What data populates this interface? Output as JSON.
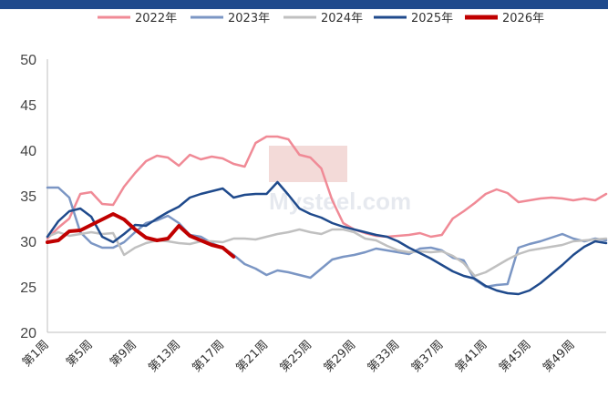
{
  "chart_data": {
    "type": "line",
    "title": "",
    "xlabel": "",
    "ylabel": "",
    "ylim": [
      20,
      50
    ],
    "yticks": [
      20,
      25,
      30,
      35,
      40,
      45,
      50
    ],
    "x_tick_labels": [
      "第1周",
      "第5周",
      "第9周",
      "第13周",
      "第17周",
      "第21周",
      "第25周",
      "第29周",
      "第33周",
      "第37周",
      "第41周",
      "第45周",
      "第49周"
    ],
    "x_tick_weeks": [
      1,
      5,
      9,
      13,
      17,
      21,
      25,
      29,
      33,
      37,
      41,
      45,
      49
    ],
    "x_range": [
      1,
      52
    ],
    "legend_position": "top",
    "series": [
      {
        "name": "2022年",
        "color": "#f08a96",
        "width": 2.5,
        "x": [
          1,
          2,
          3,
          4,
          5,
          6,
          7,
          8,
          9,
          10,
          11,
          12,
          13,
          14,
          15,
          16,
          17,
          18,
          19,
          20,
          21,
          22,
          23,
          24,
          25,
          26,
          27,
          28,
          29,
          30,
          31,
          32,
          33,
          34,
          35,
          36,
          37,
          38,
          39,
          40,
          41,
          42,
          43,
          44,
          45,
          46,
          47,
          48,
          49,
          50,
          51,
          52
        ],
        "values": [
          30.3,
          31.5,
          32.5,
          35.2,
          35.4,
          34.1,
          34.0,
          36.0,
          37.5,
          38.8,
          39.4,
          39.2,
          38.3,
          39.5,
          39.0,
          39.3,
          39.1,
          38.5,
          38.2,
          40.8,
          41.5,
          41.5,
          41.2,
          39.5,
          39.2,
          38.0,
          34.5,
          32.0,
          31.3,
          30.9,
          30.6,
          30.5,
          30.6,
          30.7,
          30.9,
          30.5,
          30.7,
          32.5,
          33.3,
          34.2,
          35.2,
          35.7,
          35.3,
          34.3,
          34.5,
          34.7,
          34.8,
          34.7,
          34.5,
          34.7,
          34.5,
          35.2
        ]
      },
      {
        "name": "2023年",
        "color": "#7b96c4",
        "width": 2.5,
        "x": [
          1,
          2,
          3,
          4,
          5,
          6,
          7,
          8,
          9,
          10,
          11,
          12,
          13,
          14,
          15,
          16,
          17,
          18,
          19,
          20,
          21,
          22,
          23,
          24,
          25,
          26,
          27,
          28,
          29,
          30,
          31,
          32,
          33,
          34,
          35,
          36,
          37,
          38,
          39,
          40,
          41,
          42,
          43,
          44,
          45,
          46,
          47,
          48,
          49,
          50,
          51,
          52
        ],
        "values": [
          35.9,
          35.9,
          34.8,
          31.0,
          29.8,
          29.3,
          29.3,
          29.9,
          31.0,
          32.0,
          32.3,
          32.8,
          32.0,
          30.7,
          30.5,
          29.8,
          29.3,
          28.5,
          27.5,
          27.0,
          26.3,
          26.8,
          26.6,
          26.3,
          26.0,
          27.0,
          28.0,
          28.3,
          28.5,
          28.8,
          29.2,
          29.0,
          28.8,
          28.6,
          29.2,
          29.3,
          29.0,
          28.2,
          27.9,
          25.8,
          25.0,
          25.2,
          25.3,
          29.3,
          29.7,
          30.0,
          30.4,
          30.8,
          30.3,
          30.0,
          30.3,
          30.1
        ]
      },
      {
        "name": "2024年",
        "color": "#c0c0c0",
        "width": 2.5,
        "x": [
          1,
          2,
          3,
          4,
          5,
          6,
          7,
          8,
          9,
          10,
          11,
          12,
          13,
          14,
          15,
          16,
          17,
          18,
          19,
          20,
          21,
          22,
          23,
          24,
          25,
          26,
          27,
          28,
          29,
          30,
          31,
          32,
          33,
          34,
          35,
          36,
          37,
          38,
          39,
          40,
          41,
          42,
          43,
          44,
          45,
          46,
          47,
          48,
          49,
          50,
          51,
          52
        ],
        "values": [
          30.5,
          31.0,
          30.6,
          30.8,
          31.0,
          30.8,
          30.9,
          28.5,
          29.3,
          29.8,
          30.1,
          30.0,
          29.8,
          29.7,
          30.0,
          30.0,
          29.9,
          30.3,
          30.3,
          30.2,
          30.5,
          30.8,
          31.0,
          31.3,
          31.0,
          30.8,
          31.3,
          31.3,
          31.0,
          30.3,
          30.1,
          29.5,
          29.0,
          28.8,
          28.9,
          28.8,
          28.9,
          28.4,
          27.6,
          26.2,
          26.6,
          27.3,
          28.0,
          28.6,
          29.0,
          29.2,
          29.4,
          29.6,
          30.0,
          30.1,
          30.2,
          30.3
        ]
      },
      {
        "name": "2025年",
        "color": "#1f4a8c",
        "width": 2.5,
        "x": [
          1,
          2,
          3,
          4,
          5,
          6,
          7,
          8,
          9,
          10,
          11,
          12,
          13,
          14,
          15,
          16,
          17,
          18,
          19,
          20,
          21,
          22,
          23,
          24,
          25,
          26,
          27,
          28,
          29,
          30,
          31,
          32,
          33,
          34,
          35,
          36,
          37,
          38,
          39,
          40,
          41,
          42,
          43,
          44,
          45,
          46,
          47,
          48,
          49,
          50,
          51,
          52
        ],
        "values": [
          30.5,
          32.2,
          33.3,
          33.6,
          32.7,
          30.5,
          29.9,
          30.8,
          31.8,
          31.7,
          32.5,
          33.2,
          33.8,
          34.8,
          35.2,
          35.5,
          35.8,
          34.8,
          35.1,
          35.2,
          35.2,
          36.5,
          35.1,
          33.6,
          33.0,
          32.6,
          32.0,
          31.6,
          31.3,
          31.0,
          30.7,
          30.5,
          30.0,
          29.3,
          28.7,
          28.1,
          27.4,
          26.7,
          26.2,
          25.9,
          25.1,
          24.6,
          24.3,
          24.2,
          24.6,
          25.4,
          26.4,
          27.4,
          28.5,
          29.4,
          30.0,
          29.8
        ]
      },
      {
        "name": "2026年",
        "color": "#c00000",
        "width": 4,
        "x": [
          1,
          2,
          3,
          4,
          5,
          6,
          7,
          8,
          9,
          10,
          11,
          12,
          13,
          14,
          15,
          16,
          17,
          18
        ],
        "values": [
          29.9,
          30.1,
          31.1,
          31.2,
          31.8,
          32.4,
          33.0,
          32.4,
          31.3,
          30.4,
          30.1,
          30.3,
          31.7,
          30.6,
          30.1,
          29.6,
          29.3,
          28.3
        ]
      }
    ]
  }
}
